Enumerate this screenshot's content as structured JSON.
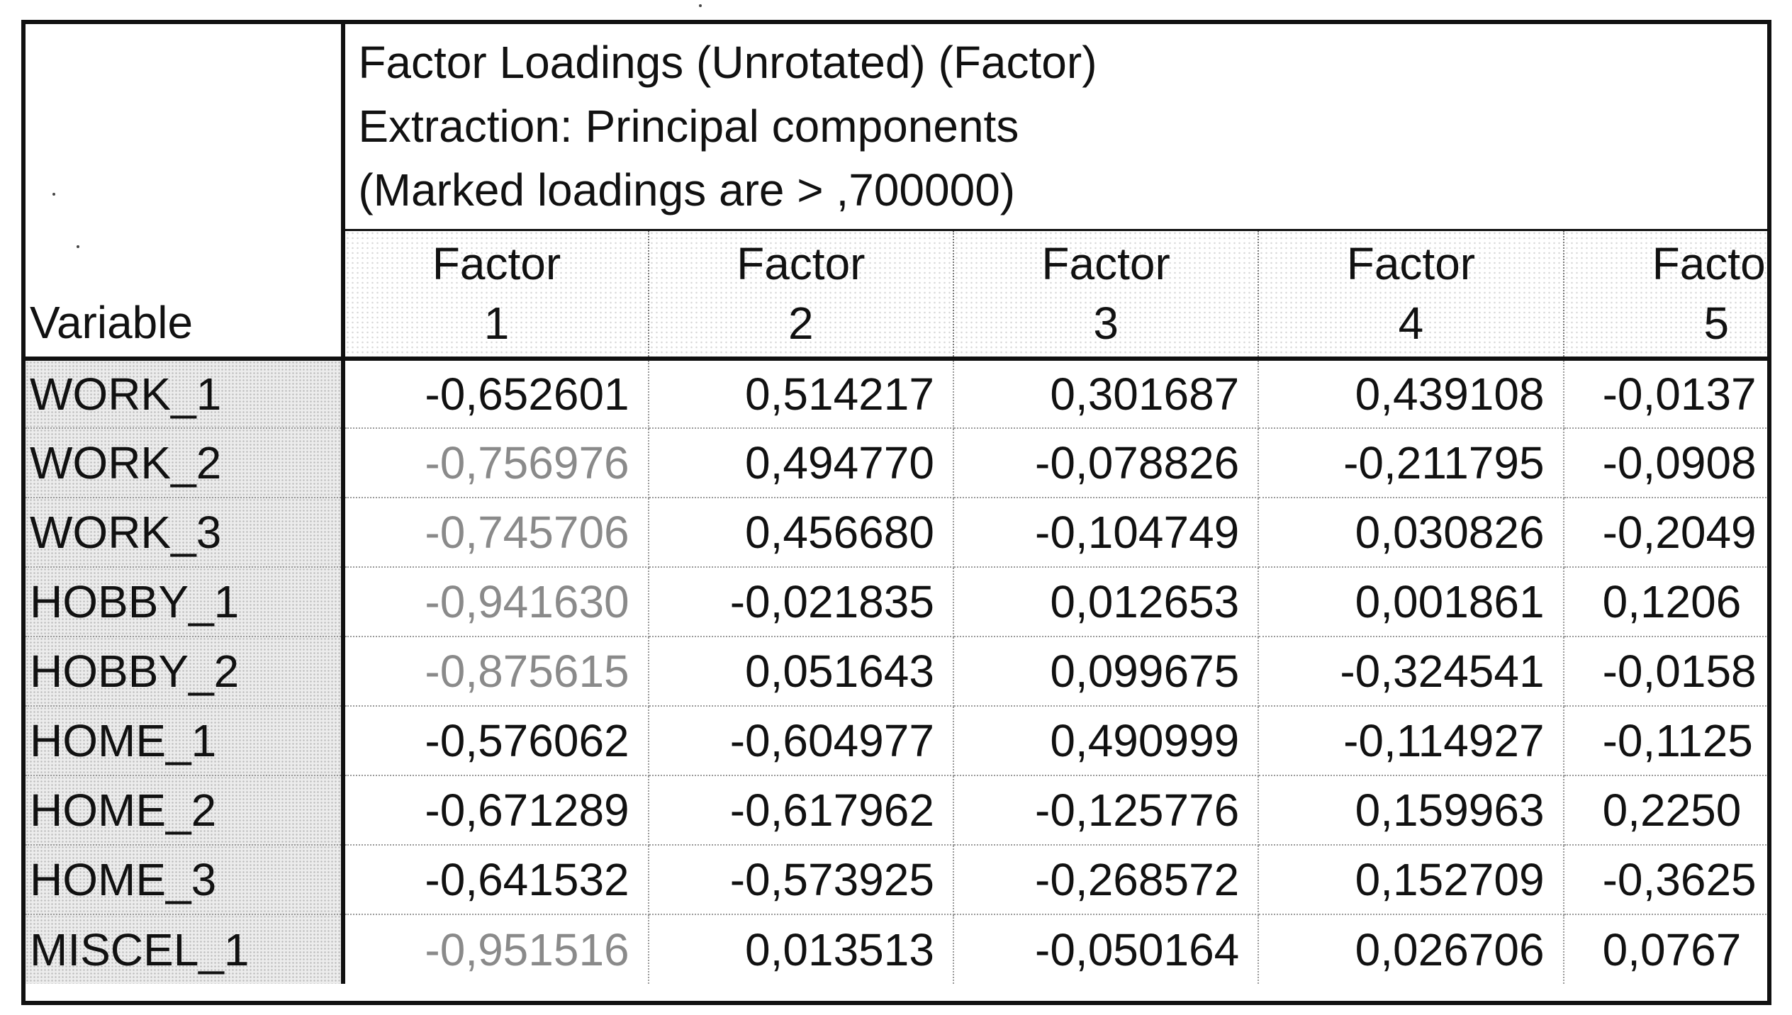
{
  "title_lines": [
    "Factor Loadings (Unrotated) (Factor)",
    "Extraction: Principal components",
    "(Marked loadings are > ,700000)"
  ],
  "variable_header": "Variable",
  "factor_headers": [
    {
      "top": "Factor",
      "bottom": "1"
    },
    {
      "top": "Factor",
      "bottom": "2"
    },
    {
      "top": "Factor",
      "bottom": "3"
    },
    {
      "top": "Factor",
      "bottom": "4"
    },
    {
      "top": "Factor",
      "bottom": "5"
    }
  ],
  "rows": [
    {
      "variable": "WORK_1",
      "values": [
        "-0,652601",
        "0,514217",
        "0,301687",
        "0,439108",
        "-0,0137"
      ],
      "marked": [
        false,
        false,
        false,
        false,
        false
      ]
    },
    {
      "variable": "WORK_2",
      "values": [
        "-0,756976",
        "0,494770",
        "-0,078826",
        "-0,211795",
        "-0,0908"
      ],
      "marked": [
        true,
        false,
        false,
        false,
        false
      ]
    },
    {
      "variable": "WORK_3",
      "values": [
        "-0,745706",
        "0,456680",
        "-0,104749",
        "0,030826",
        "-0,2049"
      ],
      "marked": [
        true,
        false,
        false,
        false,
        false
      ]
    },
    {
      "variable": "HOBBY_1",
      "values": [
        "-0,941630",
        "-0,021835",
        "0,012653",
        "0,001861",
        "0,1206"
      ],
      "marked": [
        true,
        false,
        false,
        false,
        false
      ]
    },
    {
      "variable": "HOBBY_2",
      "values": [
        "-0,875615",
        "0,051643",
        "0,099675",
        "-0,324541",
        "-0,0158"
      ],
      "marked": [
        true,
        false,
        false,
        false,
        false
      ]
    },
    {
      "variable": "HOME_1",
      "values": [
        "-0,576062",
        "-0,604977",
        "0,490999",
        "-0,114927",
        "-0,1125"
      ],
      "marked": [
        false,
        false,
        false,
        false,
        false
      ]
    },
    {
      "variable": "HOME_2",
      "values": [
        "-0,671289",
        "-0,617962",
        "-0,125776",
        "0,159963",
        "0,2250"
      ],
      "marked": [
        false,
        false,
        false,
        false,
        false
      ]
    },
    {
      "variable": "HOME_3",
      "values": [
        "-0,641532",
        "-0,573925",
        "-0,268572",
        "0,152709",
        "-0,3625"
      ],
      "marked": [
        false,
        false,
        false,
        false,
        false
      ]
    },
    {
      "variable": "MISCEL_1",
      "values": [
        "-0,951516",
        "0,013513",
        "-0,050164",
        "0,026706",
        "0,0767"
      ],
      "marked": [
        true,
        false,
        false,
        false,
        false
      ]
    }
  ],
  "colors": {
    "text": "#111111",
    "marked_text": "#8a8a8a",
    "variable_cell_bg": "#ececec",
    "border": "#111111"
  }
}
